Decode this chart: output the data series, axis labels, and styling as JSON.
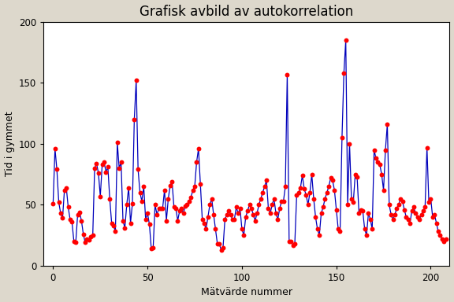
{
  "title": "Grafisk avbild av autokorrelation",
  "xlabel": "Mätvärde nummer",
  "ylabel": "Tid i gymmet",
  "xlim": [
    -5,
    210
  ],
  "ylim": [
    0,
    200
  ],
  "xticks": [
    0,
    50,
    100,
    150,
    200
  ],
  "yticks": [
    0,
    50,
    100,
    150,
    200
  ],
  "line_color": "#0000bb",
  "dot_color": "#ff0000",
  "bg_outer": "#ddd8cc",
  "bg_inner": "#ffffff",
  "title_fontsize": 12,
  "label_fontsize": 9,
  "dot_size": 18,
  "line_width": 0.9,
  "values": [
    51,
    96,
    79,
    52,
    43,
    39,
    62,
    64,
    48,
    38,
    36,
    20,
    19,
    42,
    44,
    37,
    26,
    19,
    22,
    21,
    24,
    25,
    80,
    84,
    76,
    57,
    83,
    85,
    77,
    81,
    55,
    35,
    33,
    28,
    101,
    80,
    85,
    37,
    31,
    50,
    64,
    35,
    51,
    120,
    152,
    79,
    60,
    53,
    65,
    38,
    43,
    34,
    14,
    15,
    50,
    42,
    47,
    47,
    47,
    62,
    37,
    55,
    66,
    69,
    48,
    47,
    37,
    45,
    47,
    43,
    49,
    50,
    53,
    56,
    62,
    65,
    85,
    96,
    67,
    38,
    35,
    30,
    40,
    50,
    55,
    42,
    30,
    18,
    18,
    13,
    15,
    38,
    42,
    45,
    42,
    38,
    38,
    48,
    43,
    47,
    30,
    25,
    40,
    45,
    50,
    47,
    42,
    37,
    43,
    50,
    55,
    60,
    65,
    70,
    47,
    43,
    50,
    55,
    43,
    38,
    47,
    53,
    53,
    65,
    157,
    20,
    20,
    17,
    18,
    58,
    60,
    64,
    74,
    63,
    58,
    50,
    60,
    75,
    55,
    40,
    30,
    25,
    43,
    48,
    55,
    60,
    65,
    72,
    70,
    62,
    46,
    30,
    28,
    105,
    158,
    185,
    50,
    100,
    55,
    52,
    75,
    73,
    43,
    46,
    45,
    30,
    25,
    43,
    38,
    30,
    95,
    88,
    85,
    83,
    75,
    62,
    95,
    116,
    50,
    42,
    38,
    42,
    47,
    50,
    55,
    53,
    46,
    40,
    38,
    35,
    45,
    48,
    43,
    40,
    38,
    42,
    45,
    48,
    97,
    52,
    55,
    40,
    42,
    35,
    28,
    25,
    22,
    20,
    22
  ]
}
